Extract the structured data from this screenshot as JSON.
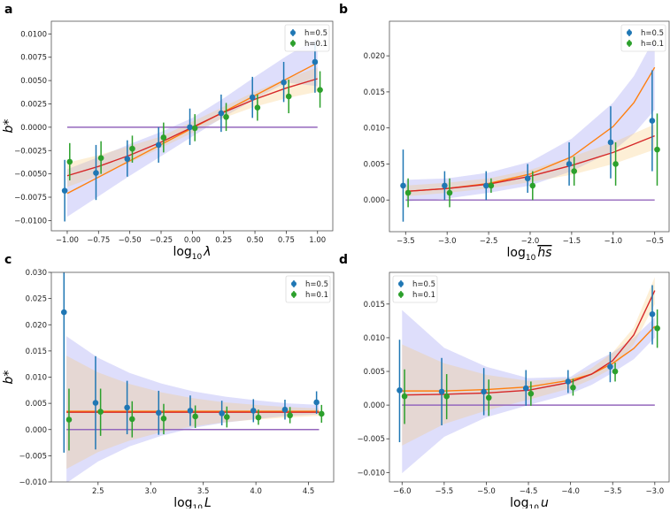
{
  "colors": {
    "blue": "#1f77b4",
    "green": "#2ca02c",
    "orange": "#ff7f0e",
    "red": "#d62728",
    "purple": "#9467bd",
    "band_blue": "#7b7bef",
    "band_beige": "#f9c46a"
  },
  "chart_data": [
    {
      "type": "scatter",
      "panel": "a",
      "ylabel": "b*",
      "xlabel": {
        "base": "log",
        "sub": "10",
        "var": "λ",
        "overline": false
      },
      "xlim": [
        -1.127,
        1.122
      ],
      "ylim": [
        -0.0111,
        0.01136
      ],
      "xticks": [
        -1.0,
        -0.75,
        -0.5,
        -0.25,
        0.0,
        0.25,
        0.5,
        0.75,
        1.0
      ],
      "xtick_labels": [
        "−1.00",
        "−0.75",
        "−0.50",
        "−0.25",
        "0.00",
        "0.25",
        "0.50",
        "0.75",
        "1.00"
      ],
      "yticks": [
        -0.01,
        -0.0075,
        -0.005,
        -0.0025,
        0,
        0.0025,
        0.005,
        0.0075,
        0.01
      ],
      "ytick_labels": [
        "−0.0100",
        "−0.0075",
        "−0.0050",
        "−0.0025",
        "0.0000",
        "0.0025",
        "0.0050",
        "0.0075",
        "0.0100"
      ],
      "legend": {
        "position": "top-right",
        "entries": [
          "h=0.5",
          "h=0.1"
        ]
      },
      "x": [
        -1,
        -0.75,
        -0.5,
        -0.25,
        0,
        0.25,
        0.5,
        0.75,
        1
      ],
      "series": [
        {
          "name": "h=0.5",
          "color": "blue",
          "offset": -0.02,
          "y": [
            -0.0068,
            -0.0049,
            -0.0034,
            -0.0019,
            0.0,
            0.0015,
            0.0032,
            0.0048,
            0.007
          ],
          "lo": [
            -0.0101,
            -0.0078,
            -0.0053,
            -0.0038,
            -0.0019,
            -0.0005,
            0.001,
            0.0027,
            0.0037
          ],
          "hi": [
            -0.0035,
            -0.0019,
            -0.0014,
            0.0,
            0.002,
            0.0035,
            0.0054,
            0.007,
            0.009
          ]
        },
        {
          "name": "h=0.1",
          "color": "green",
          "offset": 0.02,
          "y": [
            -0.0037,
            -0.0033,
            -0.0023,
            -0.0011,
            -0.0001,
            0.0011,
            0.0021,
            0.0033,
            0.004
          ],
          "lo": [
            -0.0057,
            -0.005,
            -0.0038,
            -0.0027,
            -0.0015,
            -0.0004,
            0.0007,
            0.0015,
            0.0021
          ],
          "hi": [
            -0.0017,
            -0.0015,
            -0.0009,
            0.0005,
            0.0014,
            0.0026,
            0.0035,
            0.0051,
            0.006
          ]
        }
      ],
      "bands": [
        {
          "color": "band_blue",
          "x": [
            -1,
            -0.75,
            -0.5,
            -0.25,
            0,
            0.25,
            0.5,
            0.75,
            1
          ],
          "lo": [
            -0.0096,
            -0.0074,
            -0.0052,
            -0.0031,
            -0.001,
            0.0011,
            0.003,
            0.0048,
            0.0044
          ],
          "hi": [
            -0.0045,
            -0.0032,
            -0.0018,
            -0.0005,
            0.001,
            0.0031,
            0.0054,
            0.0076,
            0.0096
          ]
        },
        {
          "color": "band_beige",
          "x": [
            -1,
            -0.75,
            -0.5,
            -0.25,
            0,
            0.25,
            0.5,
            0.75,
            1
          ],
          "lo": [
            -0.0064,
            -0.0052,
            -0.0038,
            -0.0022,
            -0.0006,
            0.001,
            0.0022,
            0.0031,
            0.0038
          ],
          "hi": [
            -0.0038,
            -0.003,
            -0.002,
            -0.001,
            0.0006,
            0.0022,
            0.0038,
            0.0052,
            0.0064
          ]
        }
      ],
      "lines": [
        {
          "color": "orange",
          "x": [
            -1,
            1
          ],
          "y": [
            -0.0071,
            0.0069
          ]
        },
        {
          "color": "red",
          "x": [
            -1,
            -0.75,
            -0.5,
            -0.25,
            0,
            0.25,
            0.5,
            0.75,
            1
          ],
          "y": [
            -0.0052,
            -0.0042,
            -0.003,
            -0.0016,
            0,
            0.0016,
            0.003,
            0.0042,
            0.0052
          ]
        },
        {
          "color": "purple",
          "x": [
            -1,
            1
          ],
          "y": [
            0,
            0
          ]
        }
      ]
    },
    {
      "type": "scatter",
      "panel": "b",
      "ylabel": "",
      "xlabel": {
        "base": "log",
        "sub": "10",
        "var": "hs",
        "overline": true
      },
      "xlim": [
        -3.695,
        -0.326
      ],
      "ylim": [
        -0.00439,
        0.0248
      ],
      "xticks": [
        -3.5,
        -3.0,
        -2.5,
        -2.0,
        -1.5,
        -1.0,
        -0.5
      ],
      "xtick_labels": [
        "−3.5",
        "−3.0",
        "−2.5",
        "−2.0",
        "−1.5",
        "−1.0",
        "−0.5"
      ],
      "yticks": [
        0,
        0.005,
        0.01,
        0.015,
        0.02
      ],
      "ytick_labels": [
        "0.000",
        "0.005",
        "0.010",
        "0.015",
        "0.020"
      ],
      "legend": {
        "position": "top-right",
        "entries": [
          "h=0.5",
          "h=0.1"
        ]
      },
      "x": [
        -3.5,
        -3.0,
        -2.5,
        -2.0,
        -1.5,
        -1.0,
        -0.5
      ],
      "series": [
        {
          "name": "h=0.5",
          "color": "blue",
          "offset": -0.02,
          "y": [
            0.002,
            0.002,
            0.002,
            0.003,
            0.005,
            0.008,
            0.011
          ],
          "lo": [
            -0.003,
            0.0,
            0.0,
            0.001,
            0.002,
            0.003,
            0.004
          ],
          "hi": [
            0.007,
            0.004,
            0.004,
            0.005,
            0.008,
            0.013,
            0.018
          ]
        },
        {
          "name": "h=0.1",
          "color": "green",
          "offset": 0.02,
          "y": [
            0.001,
            0.001,
            0.002,
            0.002,
            0.004,
            0.005,
            0.007
          ],
          "lo": [
            -0.001,
            -0.001,
            0.001,
            0.0,
            0.002,
            0.002,
            0.002
          ],
          "hi": [
            0.003,
            0.003,
            0.003,
            0.004,
            0.006,
            0.008,
            0.012
          ]
        }
      ],
      "bands": [
        {
          "color": "band_blue",
          "x": [
            -3.5,
            -3.0,
            -2.5,
            -2.0,
            -1.5,
            -1.0,
            -0.75,
            -0.5
          ],
          "lo": [
            -0.0002,
            0.0002,
            0.001,
            0.002,
            0.004,
            0.0068,
            0.0092,
            0.0125
          ],
          "hi": [
            0.0028,
            0.003,
            0.0038,
            0.0053,
            0.0085,
            0.0135,
            0.0172,
            0.0225
          ]
        },
        {
          "color": "band_beige",
          "x": [
            -3.5,
            -3.0,
            -2.5,
            -2.0,
            -1.5,
            -1.0,
            -0.5
          ],
          "lo": [
            0.0005,
            0.001,
            0.0016,
            0.0025,
            0.0035,
            0.005,
            0.007
          ],
          "hi": [
            0.002,
            0.0024,
            0.003,
            0.0042,
            0.006,
            0.008,
            0.0105
          ]
        }
      ],
      "lines": [
        {
          "color": "orange",
          "x": [
            -3.5,
            -3.0,
            -2.5,
            -2.0,
            -1.5,
            -1.0,
            -0.75,
            -0.5
          ],
          "y": [
            0.0012,
            0.0016,
            0.0023,
            0.0036,
            0.006,
            0.0102,
            0.0135,
            0.0184
          ]
        },
        {
          "color": "red",
          "x": [
            -3.5,
            -3.0,
            -2.5,
            -2.0,
            -1.5,
            -1.0,
            -0.5
          ],
          "y": [
            0.0012,
            0.0016,
            0.0022,
            0.0033,
            0.0048,
            0.0066,
            0.0089
          ]
        },
        {
          "color": "purple",
          "x": [
            -3.5,
            -0.5
          ],
          "y": [
            0,
            0
          ]
        }
      ]
    },
    {
      "type": "scatter",
      "panel": "c",
      "ylabel": "b*",
      "xlabel": {
        "base": "log",
        "sub": "10",
        "var": "L",
        "overline": false
      },
      "xlim": [
        2.056,
        4.739
      ],
      "ylim": [
        -0.01,
        0.03
      ],
      "xticks": [
        2.5,
        3.0,
        3.5,
        4.0,
        4.5
      ],
      "xtick_labels": [
        "2.5",
        "3.0",
        "3.5",
        "4.0",
        "4.5"
      ],
      "yticks": [
        -0.01,
        -0.005,
        0,
        0.005,
        0.01,
        0.015,
        0.02,
        0.025,
        0.03
      ],
      "ytick_labels": [
        "−0.010",
        "−0.005",
        "0.000",
        "0.005",
        "0.010",
        "0.015",
        "0.020",
        "0.025",
        "0.030"
      ],
      "legend": {
        "position": "top-right",
        "entries": [
          "h=0.5",
          "h=0.1"
        ]
      },
      "x": [
        2.2,
        2.5,
        2.8,
        3.1,
        3.4,
        3.7,
        4.0,
        4.3,
        4.6
      ],
      "series": [
        {
          "name": "h=0.5",
          "color": "blue",
          "offset": -0.02,
          "y": [
            0.0224,
            0.0051,
            0.0042,
            0.0032,
            0.0036,
            0.0031,
            0.0036,
            0.0038,
            0.0052
          ],
          "lo": [
            -0.0044,
            -0.0038,
            -0.0009,
            -0.001,
            0.0007,
            0.0008,
            0.0014,
            0.0019,
            0.003
          ],
          "hi": [
            0.04,
            0.014,
            0.0093,
            0.0074,
            0.0065,
            0.0055,
            0.0058,
            0.0057,
            0.0073
          ]
        },
        {
          "name": "h=0.1",
          "color": "green",
          "offset": 0.02,
          "y": [
            0.0019,
            0.0034,
            0.002,
            0.0021,
            0.0025,
            0.0024,
            0.0023,
            0.0027,
            0.003
          ],
          "lo": [
            -0.004,
            -0.0012,
            -0.0015,
            -0.0009,
            0.0003,
            0.0004,
            0.0009,
            0.0012,
            0.0013
          ],
          "hi": [
            0.0078,
            0.0078,
            0.0054,
            0.0049,
            0.0046,
            0.0044,
            0.0038,
            0.0043,
            0.0047
          ]
        }
      ],
      "bands": [
        {
          "color": "band_blue",
          "x": [
            2.2,
            2.5,
            2.8,
            3.1,
            3.4,
            3.7,
            4.0,
            4.3,
            4.6
          ],
          "lo": [
            -0.0102,
            -0.0061,
            -0.0032,
            -0.0012,
            0.0003,
            0.0013,
            0.002,
            0.0026,
            0.0029
          ],
          "hi": [
            0.0178,
            0.0137,
            0.0108,
            0.0088,
            0.0073,
            0.0063,
            0.0056,
            0.005,
            0.0047
          ]
        },
        {
          "color": "band_beige",
          "x": [
            2.2,
            2.5,
            2.8,
            3.1,
            3.4,
            3.7,
            4.0,
            4.3,
            4.6
          ],
          "lo": [
            -0.0075,
            -0.0043,
            -0.0021,
            -0.0005,
            0.0006,
            0.0014,
            0.0019,
            0.0023,
            0.0026
          ],
          "hi": [
            0.0141,
            0.0109,
            0.0087,
            0.0071,
            0.006,
            0.0052,
            0.0047,
            0.0043,
            0.004
          ]
        }
      ],
      "lines": [
        {
          "color": "orange",
          "x": [
            2.2,
            4.6
          ],
          "y": [
            0.0035,
            0.0035
          ]
        },
        {
          "color": "red",
          "x": [
            2.2,
            4.6
          ],
          "y": [
            0.0033,
            0.0033
          ]
        },
        {
          "color": "purple",
          "x": [
            2.2,
            4.6
          ],
          "y": [
            0,
            0
          ]
        }
      ]
    },
    {
      "type": "scatter",
      "panel": "d",
      "ylabel": "",
      "xlabel": {
        "base": "log",
        "sub": "10",
        "var": "u",
        "overline": false
      },
      "xlim": [
        -6.15,
        -2.83
      ],
      "ylim": [
        -0.0114,
        0.0197
      ],
      "xticks": [
        -6.0,
        -5.5,
        -5.0,
        -4.5,
        -4.0,
        -3.5,
        -3.0
      ],
      "xtick_labels": [
        "−6.0",
        "−5.5",
        "−5.0",
        "−4.5",
        "−4.0",
        "−3.5",
        "−3.0"
      ],
      "yticks": [
        -0.01,
        -0.005,
        0,
        0.005,
        0.01,
        0.015
      ],
      "ytick_labels": [
        "−0.010",
        "−0.005",
        "0.000",
        "0.005",
        "0.010",
        "0.015"
      ],
      "legend": {
        "position": "top-left",
        "entries": [
          "h=0.5",
          "h=0.1"
        ]
      },
      "x": [
        -6.0,
        -5.5,
        -5.0,
        -4.5,
        -4.0,
        -3.5,
        -3.0
      ],
      "series": [
        {
          "name": "h=0.5",
          "color": "blue",
          "offset": -0.02,
          "y": [
            0.0022,
            0.002,
            0.002,
            0.0025,
            0.0035,
            0.0057,
            0.0135
          ],
          "lo": [
            -0.0055,
            -0.003,
            -0.0015,
            -0.0001,
            0.0018,
            0.0034,
            0.009
          ],
          "hi": [
            0.0097,
            0.007,
            0.0055,
            0.0052,
            0.0052,
            0.0079,
            0.0178
          ]
        },
        {
          "name": "h=0.1",
          "color": "green",
          "offset": 0.02,
          "y": [
            0.0013,
            0.0013,
            0.0011,
            0.0017,
            0.0026,
            0.005,
            0.0114
          ],
          "lo": [
            -0.0028,
            -0.0021,
            -0.0016,
            -0.0001,
            0.0014,
            0.0035,
            0.0085
          ],
          "hi": [
            0.0053,
            0.0046,
            0.0038,
            0.0035,
            0.0039,
            0.0063,
            0.0142
          ]
        }
      ],
      "bands": [
        {
          "color": "band_blue",
          "x": [
            -6,
            -5.5,
            -5,
            -4.5,
            -4,
            -3.75,
            -3.5,
            -3.25,
            -3
          ],
          "lo": [
            -0.0101,
            -0.0047,
            -0.0018,
            0.0,
            0.0017,
            0.003,
            0.0048,
            0.0068,
            0.01
          ],
          "hi": [
            0.0141,
            0.0085,
            0.0057,
            0.004,
            0.0042,
            0.0062,
            0.0078,
            0.01,
            0.013
          ]
        },
        {
          "color": "band_beige",
          "x": [
            -6,
            -5.5,
            -5,
            -4.5,
            -4,
            -3.75,
            -3.5,
            -3.25,
            -3
          ],
          "lo": [
            -0.006,
            -0.0028,
            -0.0008,
            0.0008,
            0.0025,
            0.0038,
            0.0055,
            0.009,
            0.015
          ],
          "hi": [
            0.009,
            0.0062,
            0.0045,
            0.0036,
            0.004,
            0.0055,
            0.0078,
            0.0115,
            0.019
          ]
        }
      ],
      "lines": [
        {
          "color": "orange",
          "x": [
            -6,
            -5.5,
            -5,
            -4.5,
            -4,
            -3.75,
            -3.5,
            -3.25,
            -3
          ],
          "y": [
            0.0021,
            0.0021,
            0.0023,
            0.0027,
            0.0037,
            0.0046,
            0.0062,
            0.0084,
            0.0117
          ]
        },
        {
          "color": "red",
          "x": [
            -6,
            -5.5,
            -5,
            -4.5,
            -4,
            -3.75,
            -3.5,
            -3.25,
            -3
          ],
          "y": [
            0.0015,
            0.0016,
            0.0018,
            0.0022,
            0.0034,
            0.0046,
            0.0066,
            0.0104,
            0.017
          ]
        },
        {
          "color": "purple",
          "x": [
            -6,
            -3
          ],
          "y": [
            0,
            0
          ]
        }
      ]
    }
  ]
}
